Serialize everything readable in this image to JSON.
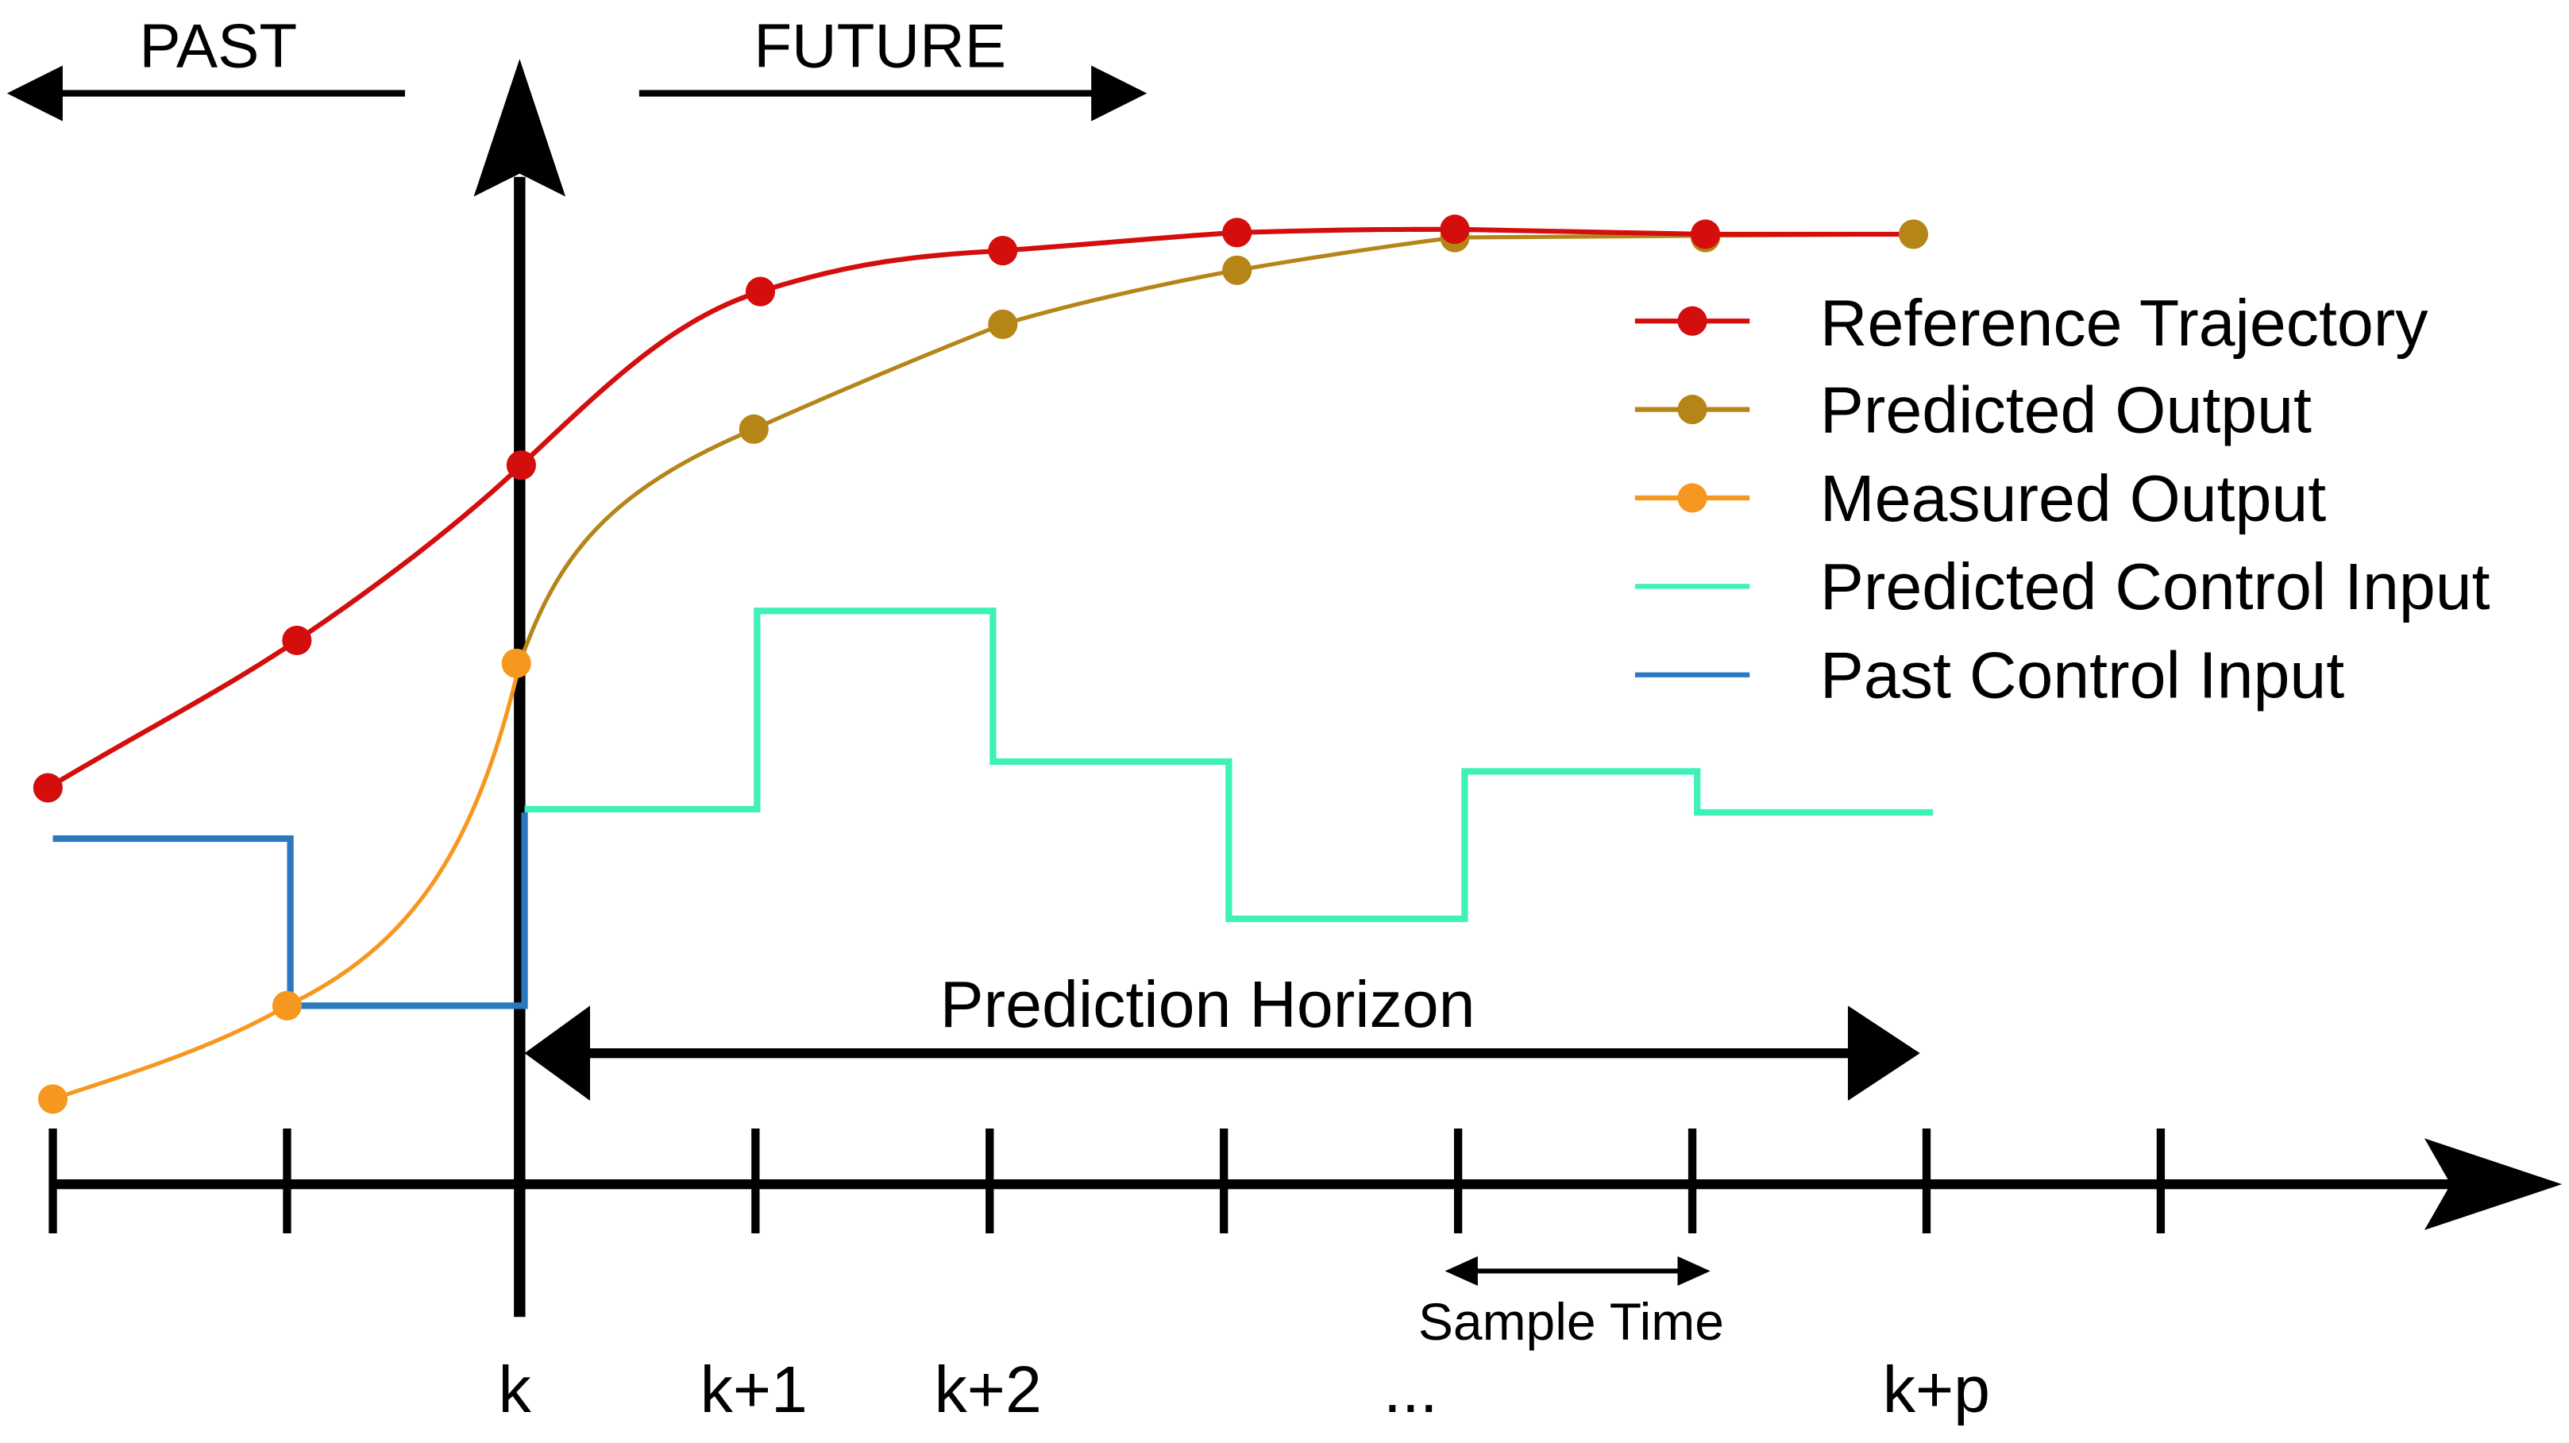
{
  "header": {
    "past_label": "PAST",
    "future_label": "FUTURE"
  },
  "legend": {
    "position": "top-right",
    "items": [
      {
        "key": "reference_trajectory",
        "label": "Reference Trajectory",
        "marker": "dot"
      },
      {
        "key": "predicted_output",
        "label": "Predicted Output",
        "marker": "dot"
      },
      {
        "key": "measured_output",
        "label": "Measured Output",
        "marker": "dot"
      },
      {
        "key": "predicted_control_input",
        "label": "Predicted Control Input",
        "marker": "none"
      },
      {
        "key": "past_control_input",
        "label": "Past Control Input",
        "marker": "none"
      }
    ]
  },
  "colors": {
    "axis": "#000000",
    "reference_trajectory": "#d40d0d",
    "predicted_output": "#b58518",
    "measured_output": "#f6981f",
    "predicted_control_input": "#3ff0b8",
    "past_control_input": "#2a78c0"
  },
  "prediction_horizon": {
    "label": "Prediction Horizon"
  },
  "sample_time": {
    "label": "Sample Time"
  },
  "time_axis": {
    "tick_labels": [
      {
        "step": 2,
        "text": "k"
      },
      {
        "step": 3,
        "text": "k+1"
      },
      {
        "step": 4,
        "text": "k+2"
      },
      {
        "step": 6,
        "text": "..."
      },
      {
        "step": 8,
        "text": "k+p"
      }
    ]
  }
}
